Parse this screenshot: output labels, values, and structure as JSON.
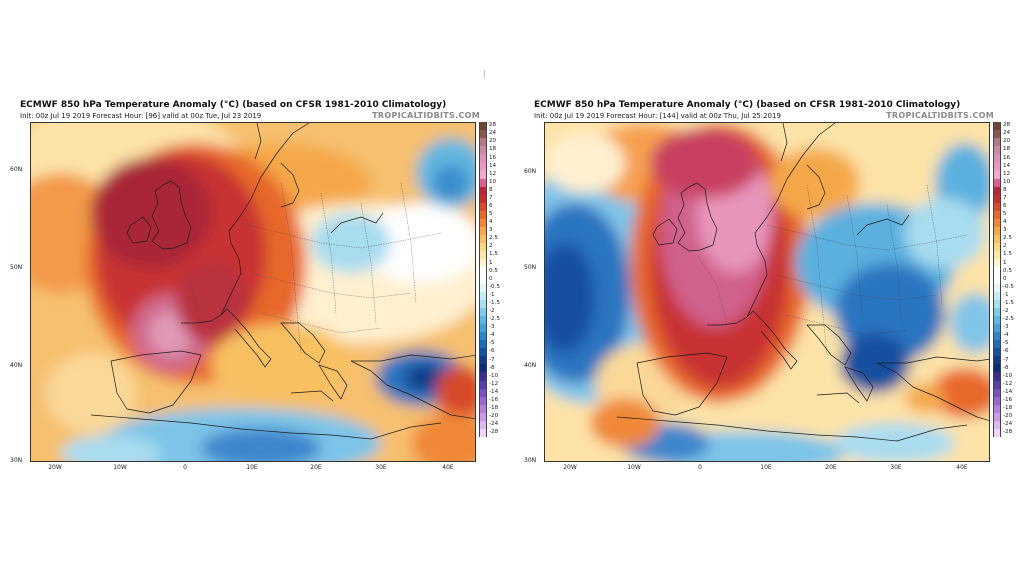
{
  "colorbar": {
    "levels": [
      "28",
      "24",
      "20",
      "18",
      "16",
      "14",
      "12",
      "10",
      "8",
      "7",
      "6",
      "5",
      "4",
      "3",
      "2.5",
      "2",
      "1.5",
      "1",
      "0.5",
      "0",
      "-0.5",
      "-1",
      "-1.5",
      "-2",
      "-2.5",
      "-3",
      "-4",
      "-5",
      "-6",
      "-7",
      "-8",
      "-10",
      "-12",
      "-14",
      "-16",
      "-18",
      "-20",
      "-24",
      "-28"
    ],
    "colors": [
      "#6b4638",
      "#8c5a4c",
      "#b07a88",
      "#c98aa6",
      "#dc92b8",
      "#e89ac2",
      "#f0a8cc",
      "#d86090",
      "#b8283c",
      "#c43030",
      "#d84a2c",
      "#e8682c",
      "#f08838",
      "#f5a848",
      "#f8c060",
      "#fad880",
      "#fde8a8",
      "#fff4d0",
      "#ffffff",
      "#ffffff",
      "#e6f6fa",
      "#c8ecf6",
      "#a8e0f0",
      "#80cce8",
      "#5cb8e0",
      "#40a4d8",
      "#2c88cc",
      "#1c6cb8",
      "#1450a0",
      "#103c88",
      "#0c2c70",
      "#3c2c90",
      "#5a3ca8",
      "#7a50c0",
      "#9868d0",
      "#b480dc",
      "#cc9ce6",
      "#dcb8ee",
      "#eed4f6"
    ]
  },
  "axes": {
    "lat_labels": [
      "60N",
      "50N",
      "40N",
      "30N"
    ],
    "lon_labels": [
      "20W",
      "10W",
      "0",
      "10E",
      "20E",
      "30E",
      "40E"
    ]
  },
  "brand": "TROPICALTIDBITS.COM",
  "panels": [
    {
      "title": "ECMWF 850 hPa Temperature Anomaly (°C) (based on CFSR 1981-2010 Climatology)",
      "subtitle": "Init: 00z Jul 19 2019   Forecast Hour: [96]   valid at 00z Tue, Jul 23 2019"
    },
    {
      "title": "ECMWF 850 hPa Temperature Anomaly (°C) (based on CFSR 1981-2010 Climatology)",
      "subtitle": "Init: 00z Jul 19 2019   Forecast Hour: [144]   valid at 00z Thu, Jul 25 2019"
    }
  ]
}
